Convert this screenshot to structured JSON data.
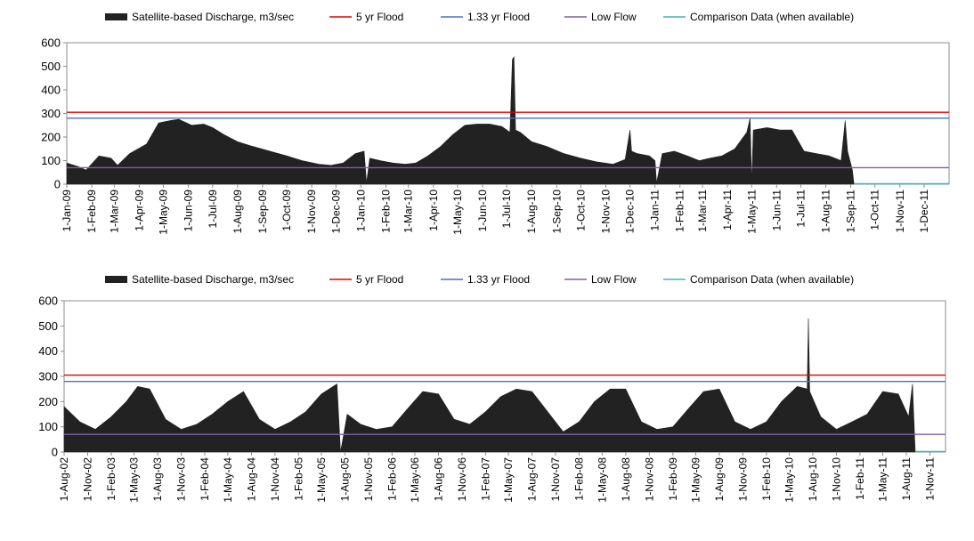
{
  "chart_data": [
    {
      "type": "area",
      "legend": [
        {
          "label": "Satellite-based Discharge, m3/sec",
          "color": "#222222",
          "kind": "area"
        },
        {
          "label": "5 yr Flood",
          "color": "#e00000",
          "kind": "line"
        },
        {
          "label": "1.33 yr Flood",
          "color": "#4472c4",
          "kind": "line"
        },
        {
          "label": "Low Flow",
          "color": "#7f5fa0",
          "kind": "line"
        },
        {
          "label": "Comparison Data (when available)",
          "color": "#3bb3c3",
          "kind": "line"
        }
      ],
      "ylim": [
        0,
        600
      ],
      "yticks": [
        "0",
        "100",
        "200",
        "300",
        "400",
        "500",
        "600"
      ],
      "x_start": "2009-01-01",
      "x_end": "2011-12-31",
      "xticks": [
        "1-Jan-09",
        "1-Feb-09",
        "1-Mar-09",
        "1-Apr-09",
        "1-May-09",
        "1-Jun-09",
        "1-Jul-09",
        "1-Aug-09",
        "1-Sep-09",
        "1-Oct-09",
        "1-Nov-09",
        "1-Dec-09",
        "1-Jan-10",
        "1-Feb-10",
        "1-Mar-10",
        "1-Apr-10",
        "1-May-10",
        "1-Jun-10",
        "1-Jul-10",
        "1-Aug-10",
        "1-Sep-10",
        "1-Oct-10",
        "1-Nov-10",
        "1-Dec-10",
        "1-Jan-11",
        "1-Feb-11",
        "1-Mar-11",
        "1-Apr-11",
        "1-May-11",
        "1-Jun-11",
        "1-Jul-11",
        "1-Aug-11",
        "1-Sep-11",
        "1-Oct-11",
        "1-Nov-11",
        "1-Dec-11"
      ],
      "thresholds": {
        "five_yr_flood": 305,
        "one33_yr_flood": 280,
        "low_flow": 70,
        "comparison": 0
      },
      "series": [
        {
          "name": "Satellite-based Discharge, m3/sec",
          "x": [
            "2009-01-01",
            "2009-01-15",
            "2009-01-25",
            "2009-02-10",
            "2009-02-25",
            "2009-03-05",
            "2009-03-20",
            "2009-04-10",
            "2009-04-25",
            "2009-05-10",
            "2009-05-20",
            "2009-06-05",
            "2009-06-20",
            "2009-07-01",
            "2009-07-15",
            "2009-08-01",
            "2009-08-20",
            "2009-09-10",
            "2009-10-01",
            "2009-10-20",
            "2009-11-10",
            "2009-11-25",
            "2009-12-10",
            "2009-12-25",
            "2010-01-05",
            "2010-01-08",
            "2010-01-12",
            "2010-01-25",
            "2010-02-10",
            "2010-02-25",
            "2010-03-10",
            "2010-03-25",
            "2010-04-10",
            "2010-04-25",
            "2010-05-10",
            "2010-05-25",
            "2010-06-10",
            "2010-06-25",
            "2010-07-05",
            "2010-07-08",
            "2010-07-10",
            "2010-07-12",
            "2010-07-18",
            "2010-08-01",
            "2010-08-20",
            "2010-09-10",
            "2010-10-01",
            "2010-10-20",
            "2010-11-10",
            "2010-11-25",
            "2010-12-01",
            "2010-12-03",
            "2010-12-10",
            "2010-12-25",
            "2011-01-01",
            "2011-01-03",
            "2011-01-10",
            "2011-01-25",
            "2011-02-10",
            "2011-02-25",
            "2011-03-10",
            "2011-03-25",
            "2011-04-10",
            "2011-04-25",
            "2011-04-29",
            "2011-05-01",
            "2011-05-03",
            "2011-05-20",
            "2011-06-05",
            "2011-06-20",
            "2011-07-05",
            "2011-07-20",
            "2011-08-05",
            "2011-08-20",
            "2011-08-25",
            "2011-08-28",
            "2011-09-03",
            "2011-09-05"
          ],
          "y": [
            90,
            75,
            60,
            120,
            110,
            80,
            130,
            170,
            260,
            270,
            275,
            250,
            255,
            240,
            210,
            180,
            160,
            140,
            120,
            100,
            85,
            80,
            90,
            130,
            140,
            5,
            110,
            100,
            90,
            85,
            90,
            120,
            160,
            210,
            250,
            255,
            255,
            245,
            220,
            530,
            540,
            230,
            220,
            180,
            160,
            130,
            110,
            95,
            85,
            105,
            230,
            140,
            130,
            120,
            100,
            5,
            130,
            140,
            120,
            100,
            110,
            120,
            150,
            220,
            280,
            5,
            230,
            240,
            230,
            230,
            140,
            130,
            120,
            100,
            270,
            140,
            60,
            0
          ]
        }
      ]
    },
    {
      "type": "area",
      "legend": [
        {
          "label": "Satellite-based Discharge, m3/sec",
          "color": "#222222",
          "kind": "area"
        },
        {
          "label": "5 yr Flood",
          "color": "#e00000",
          "kind": "line"
        },
        {
          "label": "1.33 yr Flood",
          "color": "#4472c4",
          "kind": "line"
        },
        {
          "label": "Low Flow",
          "color": "#7f5fa0",
          "kind": "line"
        },
        {
          "label": "Comparison Data (when available)",
          "color": "#3bb3c3",
          "kind": "line"
        }
      ],
      "ylim": [
        0,
        600
      ],
      "yticks": [
        "0",
        "100",
        "200",
        "300",
        "400",
        "500",
        "600"
      ],
      "x_start": "2002-08-01",
      "x_end": "2011-12-31",
      "xticks": [
        "1-Aug-02",
        "1-Nov-02",
        "1-Feb-03",
        "1-May-03",
        "1-Aug-03",
        "1-Nov-03",
        "1-Feb-04",
        "1-May-04",
        "1-Aug-04",
        "1-Nov-04",
        "1-Feb-05",
        "1-May-05",
        "1-Aug-05",
        "1-Nov-05",
        "1-Feb-06",
        "1-May-06",
        "1-Aug-06",
        "1-Nov-06",
        "1-Feb-07",
        "1-May-07",
        "1-Aug-07",
        "1-Nov-07",
        "1-Feb-08",
        "1-May-08",
        "1-Aug-08",
        "1-Nov-08",
        "1-Feb-09",
        "1-May-09",
        "1-Aug-09",
        "1-Nov-09",
        "1-Feb-10",
        "1-May-10",
        "1-Aug-10",
        "1-Nov-10",
        "1-Feb-11",
        "1-May-11",
        "1-Aug-11",
        "1-Nov-11"
      ],
      "thresholds": {
        "five_yr_flood": 305,
        "one33_yr_flood": 280,
        "low_flow": 70,
        "comparison": 0
      },
      "series": [
        {
          "name": "Satellite-based Discharge, m3/sec",
          "x": [
            "2002-08-01",
            "2002-10-01",
            "2002-12-01",
            "2003-02-01",
            "2003-04-01",
            "2003-05-15",
            "2003-07-01",
            "2003-09-01",
            "2003-11-01",
            "2004-01-01",
            "2004-03-01",
            "2004-05-01",
            "2004-07-01",
            "2004-09-01",
            "2004-11-01",
            "2005-01-01",
            "2005-03-01",
            "2005-05-01",
            "2005-07-01",
            "2005-07-15",
            "2005-08-10",
            "2005-10-01",
            "2005-12-01",
            "2006-02-01",
            "2006-04-01",
            "2006-06-01",
            "2006-08-01",
            "2006-10-01",
            "2006-12-01",
            "2007-02-01",
            "2007-04-01",
            "2007-06-01",
            "2007-08-01",
            "2007-10-01",
            "2007-12-01",
            "2008-02-01",
            "2008-04-01",
            "2008-06-01",
            "2008-08-01",
            "2008-10-01",
            "2008-12-01",
            "2009-02-01",
            "2009-04-01",
            "2009-06-01",
            "2009-08-01",
            "2009-10-01",
            "2009-12-01",
            "2010-02-01",
            "2010-04-01",
            "2010-06-01",
            "2010-07-10",
            "2010-07-15",
            "2010-07-20",
            "2010-09-01",
            "2010-11-01",
            "2011-01-01",
            "2011-03-01",
            "2011-05-01",
            "2011-07-01",
            "2011-08-10",
            "2011-08-25",
            "2011-09-05"
          ],
          "y": [
            180,
            120,
            90,
            140,
            200,
            260,
            250,
            130,
            90,
            110,
            150,
            200,
            240,
            130,
            90,
            120,
            160,
            230,
            270,
            0,
            150,
            110,
            90,
            100,
            170,
            240,
            230,
            130,
            110,
            160,
            220,
            250,
            240,
            160,
            80,
            120,
            200,
            250,
            250,
            120,
            90,
            100,
            170,
            240,
            250,
            120,
            90,
            120,
            200,
            260,
            250,
            530,
            240,
            140,
            90,
            120,
            150,
            240,
            230,
            140,
            270,
            0
          ]
        }
      ]
    }
  ]
}
